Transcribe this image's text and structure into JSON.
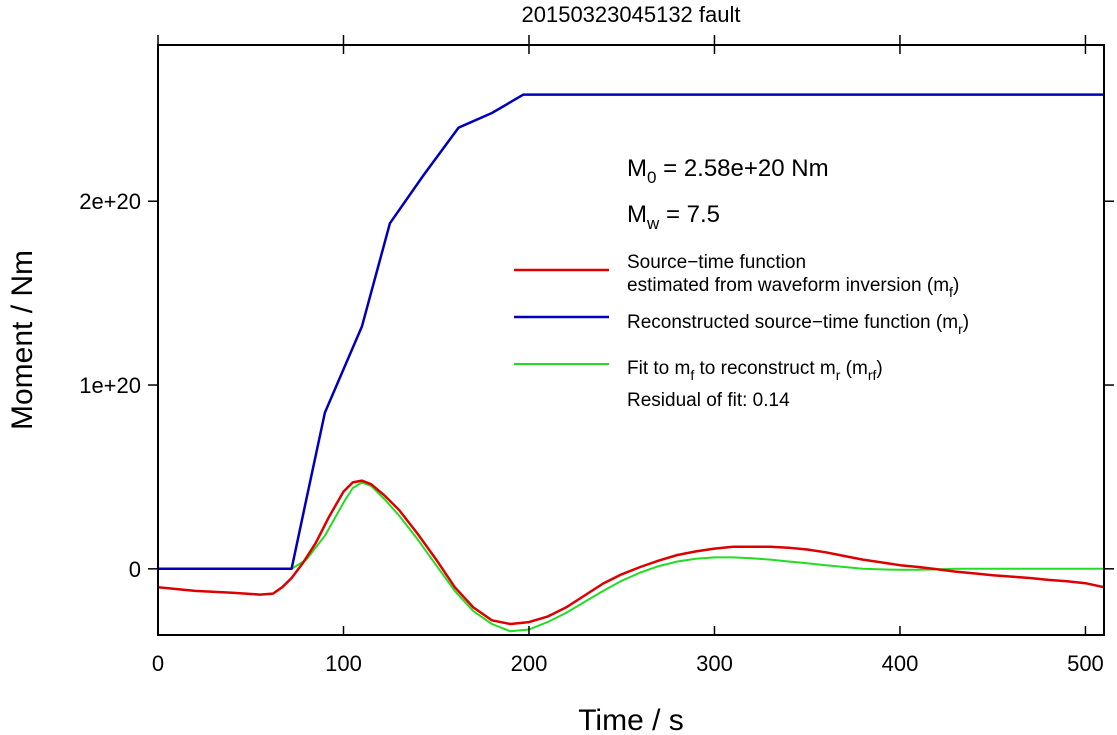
{
  "chart_data": {
    "type": "line",
    "title": "20150323045132 fault",
    "xlabel": "Time / s",
    "ylabel": "Moment / Nm",
    "xlim": [
      0,
      510
    ],
    "ylim": [
      -3.6e+19,
      2.85e+20
    ],
    "x_ticks": [
      0,
      100,
      200,
      300,
      400,
      500
    ],
    "x_tick_labels": [
      "0",
      "100",
      "200",
      "300",
      "400",
      "500"
    ],
    "y_ticks": [
      0,
      1e+20,
      2e+20
    ],
    "y_tick_labels": [
      "0",
      "1e+20",
      "2e+20"
    ],
    "grid": false,
    "legend_position": "right",
    "annotations": {
      "m0": {
        "symbol": "M",
        "subscript": "0",
        "text": " = 2.58e+20 Nm"
      },
      "mw": {
        "symbol": "M",
        "subscript": "w",
        "text": " = 7.5"
      },
      "residual": "Residual of fit: 0.14"
    },
    "series": [
      {
        "name": "Source−time function estimated from waveform inversion (mf)",
        "legend_lines": [
          {
            "text": "Source−time function"
          },
          {
            "text": "estimated from waveform inversion (m",
            "subscript": "f",
            "suffix": ")"
          }
        ],
        "color": "#dd0000",
        "x": [
          0,
          20,
          40,
          55,
          62,
          67,
          72,
          78,
          85,
          92,
          100,
          105,
          110,
          115,
          122,
          130,
          140,
          150,
          160,
          170,
          180,
          190,
          200,
          210,
          220,
          230,
          240,
          250,
          260,
          270,
          280,
          290,
          300,
          310,
          320,
          330,
          340,
          350,
          360,
          370,
          380,
          390,
          400,
          410,
          420,
          430,
          440,
          450,
          460,
          470,
          480,
          490,
          500,
          510
        ],
        "values": [
          -1e+19,
          -1.2e+19,
          -1.3e+19,
          -1.4e+19,
          -1.35e+19,
          -1e+19,
          -5e+18,
          3e+18,
          1.4e+19,
          2.8e+19,
          4.2e+19,
          4.7e+19,
          4.8e+19,
          4.6e+19,
          4e+19,
          3.2e+19,
          1.9e+19,
          5e+18,
          -1e+19,
          -2.1e+19,
          -2.8e+19,
          -3e+19,
          -2.9e+19,
          -2.6e+19,
          -2.1e+19,
          -1.45e+19,
          -8e+18,
          -3e+18,
          1e+18,
          4.5e+18,
          7.5e+18,
          9.5e+18,
          1.1e+19,
          1.2e+19,
          1.2e+19,
          1.2e+19,
          1.15e+19,
          1.05e+19,
          9e+18,
          7e+18,
          5e+18,
          3.5e+18,
          2e+18,
          1e+18,
          -2e+17,
          -1.5e+18,
          -2.5e+18,
          -3.5e+18,
          -4.2e+18,
          -5e+18,
          -6e+18,
          -6.8e+18,
          -7.8e+18,
          -1e+19
        ]
      },
      {
        "name": "Reconstructed source−time function (mr)",
        "legend_lines": [
          {
            "text": "Reconstructed source−time function (m",
            "subscript": "r",
            "suffix": ")"
          }
        ],
        "color": "#0000bb",
        "x": [
          0,
          72,
          80,
          90,
          110,
          125,
          143,
          162,
          180,
          197,
          510
        ],
        "values": [
          0,
          0,
          3.8e+19,
          8.5e+19,
          1.32e+20,
          1.88e+20,
          2.14e+20,
          2.4e+20,
          2.48e+20,
          2.58e+20,
          2.58e+20
        ]
      },
      {
        "name": "Fit to mf to reconstruct mr (mrf)",
        "legend_lines": [
          {
            "text": "Fit to m",
            "subscript": "f",
            "suffix": " to reconstruct m"
          },
          {
            "text": "",
            "subscript": "r",
            "suffix": " (m"
          },
          {
            "text": "",
            "subscript": "rf",
            "suffix": ")"
          }
        ],
        "color": "#22dd22",
        "x": [
          0,
          60,
          72,
          80,
          90,
          100,
          105,
          110,
          115,
          122,
          130,
          140,
          150,
          160,
          170,
          180,
          190,
          200,
          210,
          220,
          230,
          240,
          250,
          260,
          270,
          280,
          290,
          300,
          310,
          320,
          330,
          340,
          350,
          360,
          370,
          380,
          390,
          400,
          410,
          420,
          430,
          440,
          460,
          480,
          510
        ],
        "values": [
          0,
          0,
          0,
          5e+18,
          1.8e+19,
          3.6e+19,
          4.4e+19,
          4.7e+19,
          4.5e+19,
          3.8e+19,
          2.9e+19,
          1.6e+19,
          2e+18,
          -1.2e+19,
          -2.3e+19,
          -3e+19,
          -3.4e+19,
          -3.3e+19,
          -2.9e+19,
          -2.4e+19,
          -1.8e+19,
          -1.2e+19,
          -6.5e+18,
          -2e+18,
          1.5e+18,
          4e+18,
          5.5e+18,
          6.2e+18,
          6.2e+18,
          5.8e+18,
          5e+18,
          4e+18,
          3e+18,
          2e+18,
          1e+18,
          0,
          -3e+17,
          -5e+17,
          -5e+17,
          -3e+17,
          0,
          0,
          0,
          0,
          0
        ]
      }
    ]
  }
}
